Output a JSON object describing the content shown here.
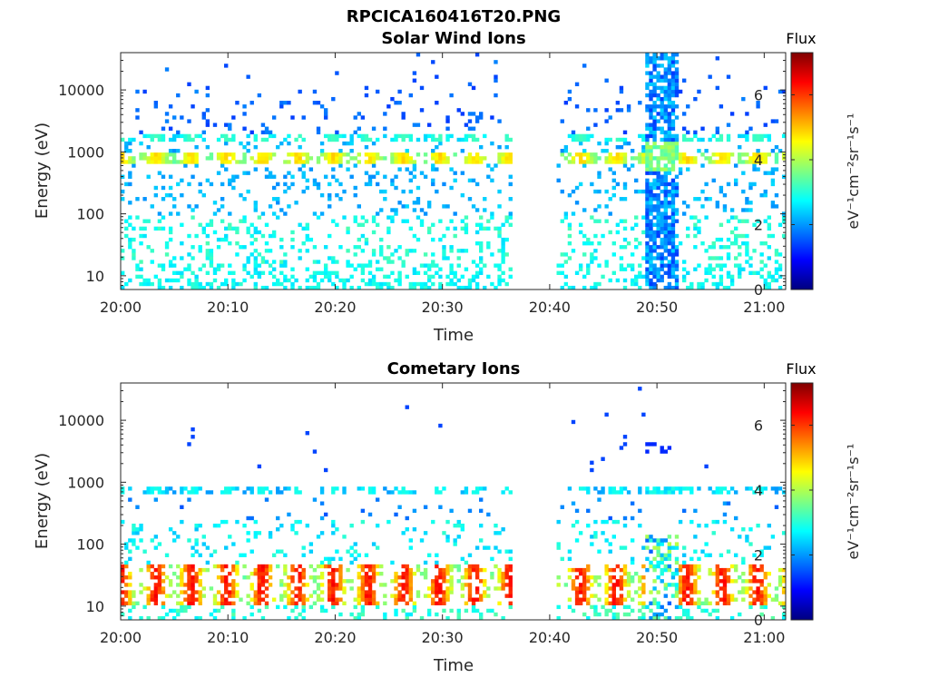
{
  "figure": {
    "title": "RPCICA160416T20.PNG"
  },
  "chart_data": [
    {
      "type": "heatmap",
      "title": "Solar Wind Ions",
      "xlabel": "Time",
      "ylabel": "Energy (eV)",
      "x_ticks": [
        "20:00",
        "20:10",
        "20:20",
        "20:30",
        "20:40",
        "20:50",
        "21:00"
      ],
      "x_range": [
        "20:00",
        "21:02"
      ],
      "y_scale": "log",
      "y_ticks": [
        10,
        100,
        1000,
        10000
      ],
      "y_tick_labels": [
        "10",
        "100",
        "1000",
        "10000"
      ],
      "y_range": [
        6,
        40000
      ],
      "colorbar": {
        "label": "eV⁻¹cm⁻²sr⁻¹s⁻¹",
        "title": "Flux",
        "range": [
          0,
          7.3
        ],
        "ticks": [
          0,
          2,
          4,
          6
        ]
      },
      "data_gaps": [
        [
          "20:36:30",
          "20:40:30"
        ]
      ],
      "features": {
        "main_band_energy_eV": 800,
        "main_band_flux": 4.5,
        "secondary_band_energy_eV": 1600,
        "secondary_band_flux": 3.0,
        "low_energy_flux": 2.5,
        "burst_interval": [
          "20:49:00",
          "20:52:00"
        ]
      }
    },
    {
      "type": "heatmap",
      "title": "Cometary Ions",
      "xlabel": "Time",
      "ylabel": "Energy (eV)",
      "x_ticks": [
        "20:00",
        "20:10",
        "20:20",
        "20:30",
        "20:40",
        "20:50",
        "21:00"
      ],
      "x_range": [
        "20:00",
        "21:02"
      ],
      "y_scale": "log",
      "y_ticks": [
        10,
        100,
        1000,
        10000
      ],
      "y_tick_labels": [
        "10",
        "100",
        "1000",
        "10000"
      ],
      "y_range": [
        6,
        40000
      ],
      "colorbar": {
        "label": "eV⁻¹cm⁻²sr⁻¹s⁻¹",
        "title": "Flux",
        "range": [
          0,
          7.3
        ],
        "ticks": [
          0,
          2,
          4,
          6
        ]
      },
      "data_gaps": [
        [
          "20:36:30",
          "20:40:30"
        ]
      ],
      "features": {
        "main_band_energy_eV": 750,
        "main_band_flux": 3.0,
        "low_energy_band_eV": [
          10,
          50
        ],
        "low_energy_peak_flux": 6.0,
        "burst_interval": [
          "20:49:00",
          "20:52:00"
        ]
      }
    }
  ]
}
